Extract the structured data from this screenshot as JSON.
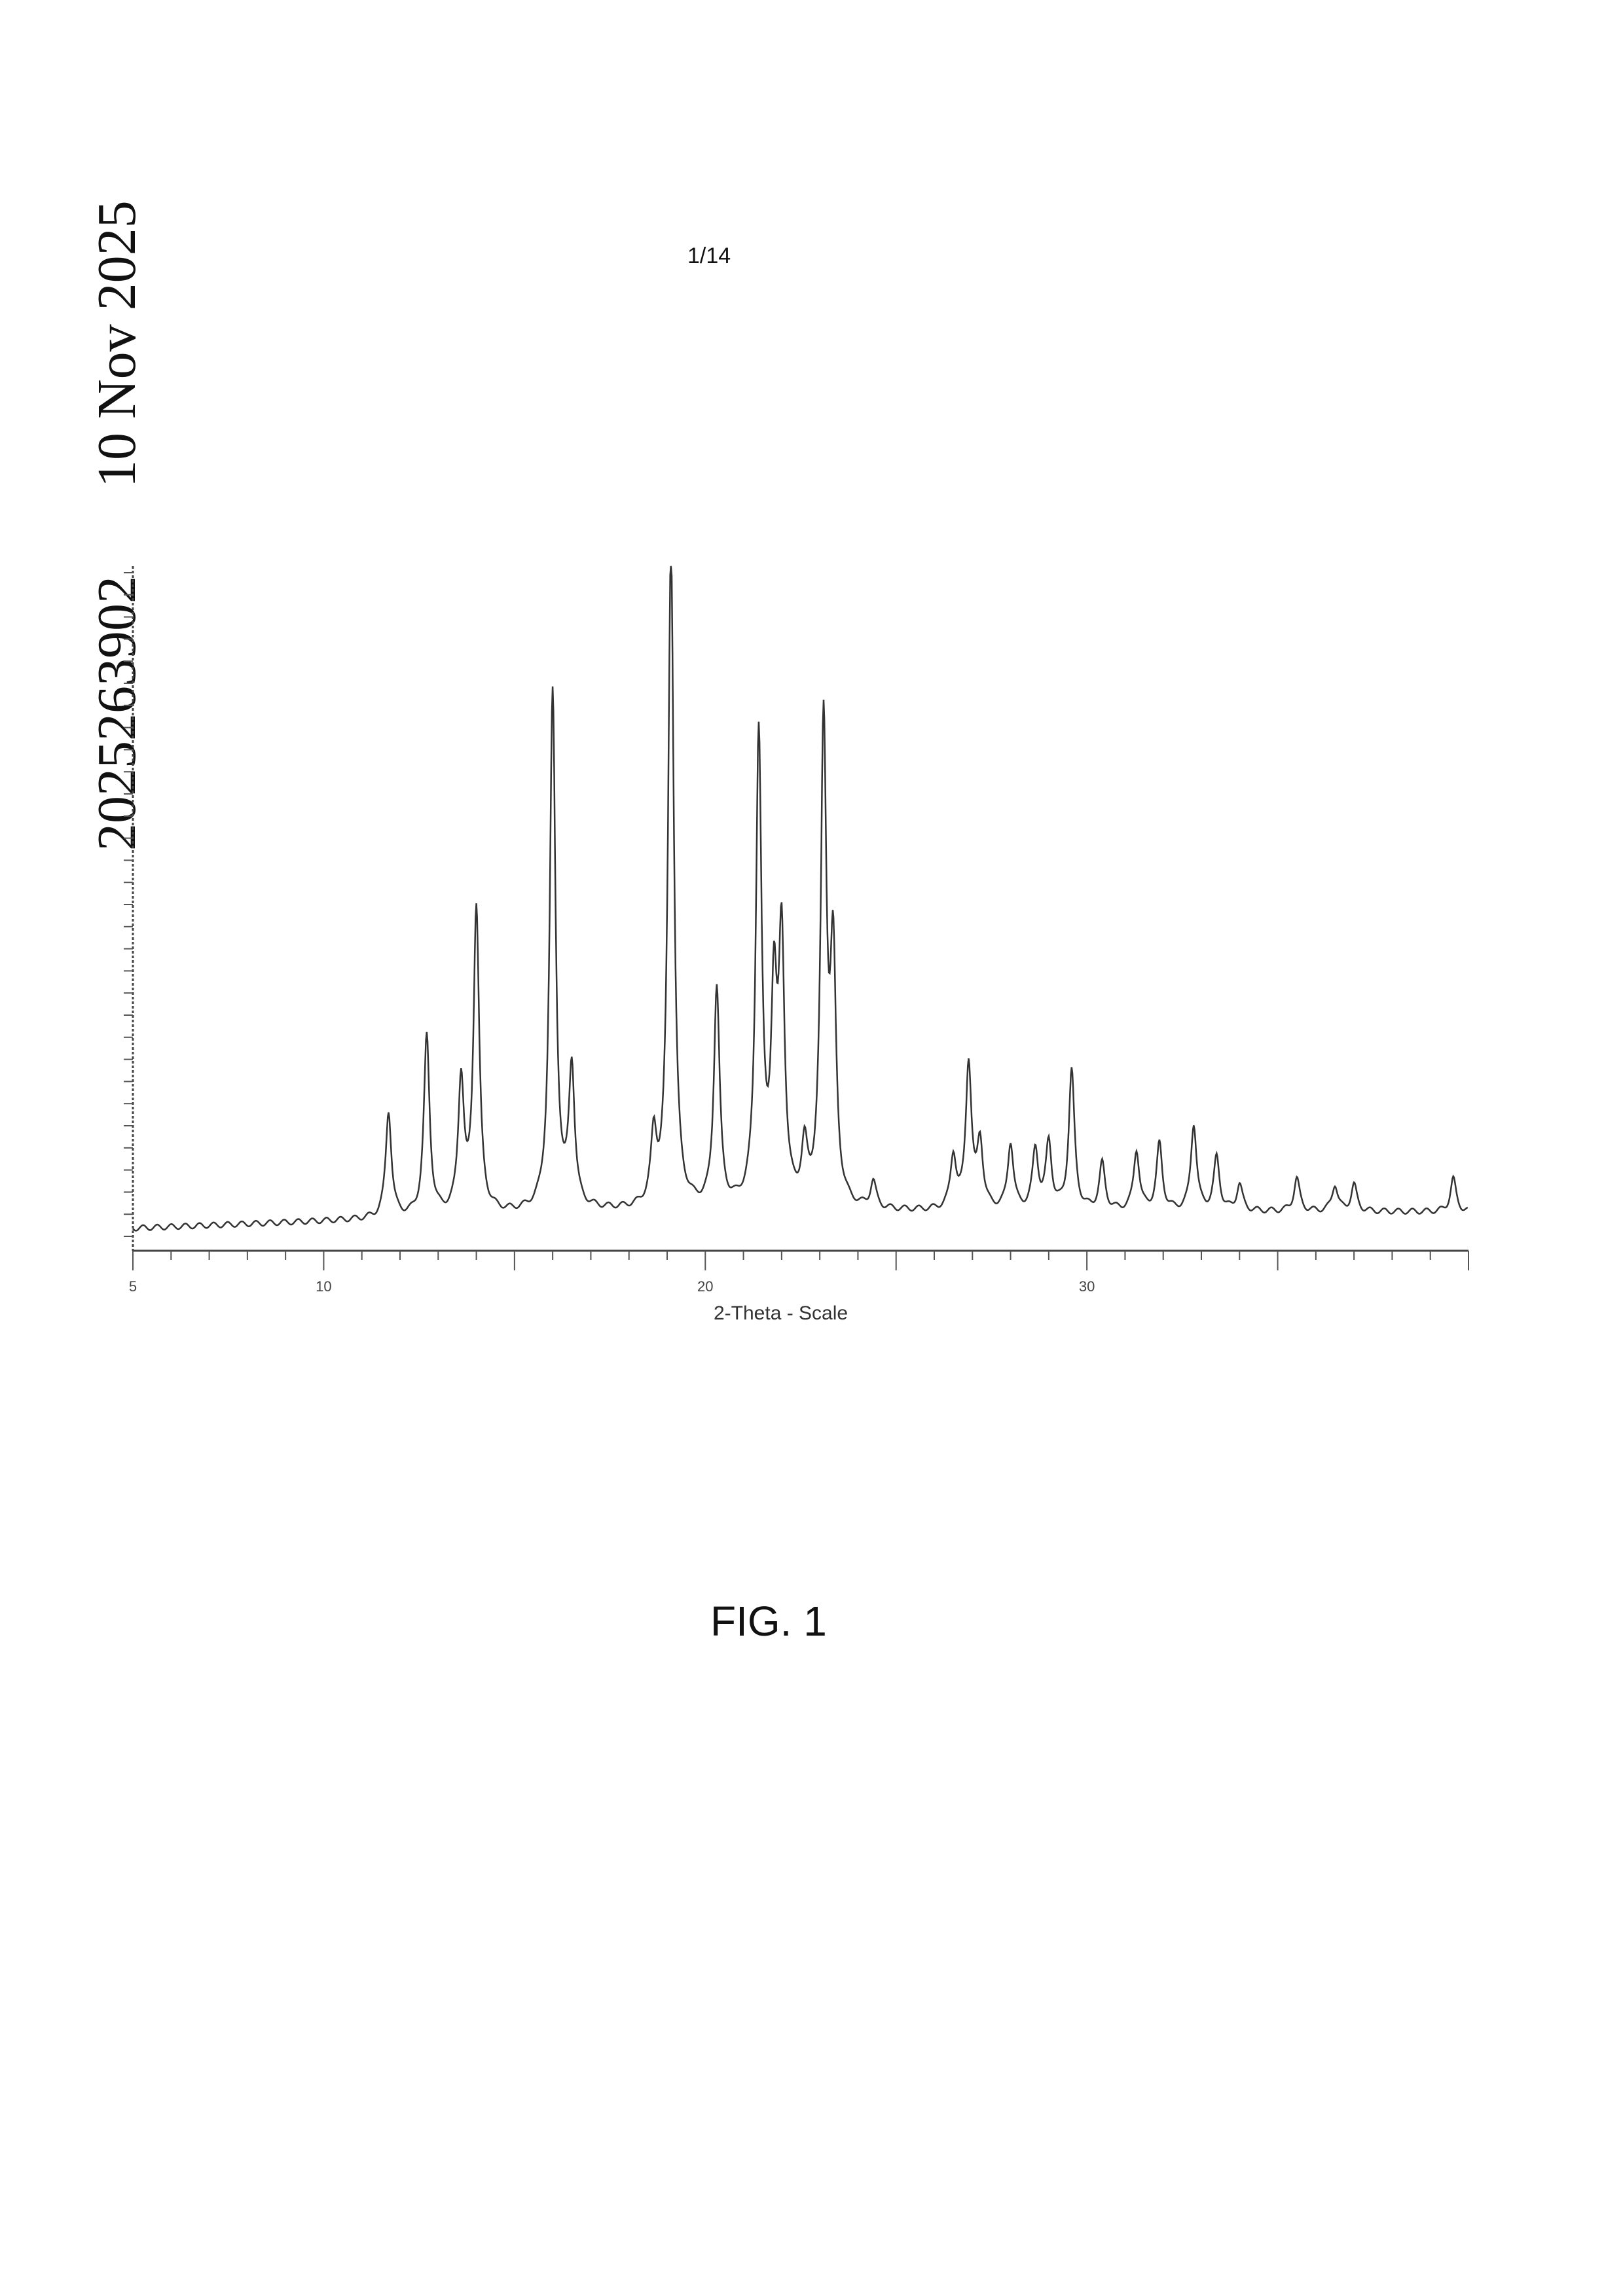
{
  "header": {
    "date": "10 Nov 2025",
    "application_number": "2025263902",
    "page_number": "1/14"
  },
  "figure": {
    "caption": "FIG. 1"
  },
  "chart_data": {
    "type": "line",
    "title": "",
    "xlabel": "2-Theta - Scale",
    "ylabel": "",
    "xlim": [
      5,
      40
    ],
    "ylim": [
      0,
      1
    ],
    "x_tick_labels": [
      "5",
      "10",
      "20",
      "30"
    ],
    "x_ticks": [
      5,
      10,
      20,
      30
    ],
    "grid": false,
    "series": [
      {
        "peaks_2theta": [
          11.7,
          12.7,
          13.6,
          14.0,
          16.0,
          16.5,
          18.65,
          19.1,
          20.3,
          21.4,
          21.8,
          22.0,
          22.6,
          23.1,
          23.35,
          24.4,
          26.5,
          26.9,
          27.2,
          28.0,
          28.65,
          29.0,
          29.6,
          30.4,
          31.3,
          31.9,
          32.8,
          33.4,
          34.0,
          35.5,
          36.5,
          37.0,
          39.6
        ],
        "relative_intensity": [
          0.16,
          0.27,
          0.2,
          0.46,
          0.78,
          0.21,
          0.1,
          1.0,
          0.33,
          0.71,
          0.3,
          0.39,
          0.08,
          0.72,
          0.36,
          0.04,
          0.08,
          0.22,
          0.1,
          0.1,
          0.09,
          0.1,
          0.21,
          0.07,
          0.09,
          0.1,
          0.13,
          0.08,
          0.04,
          0.05,
          0.04,
          0.04,
          0.05
        ]
      }
    ],
    "line_color": "#333333"
  }
}
